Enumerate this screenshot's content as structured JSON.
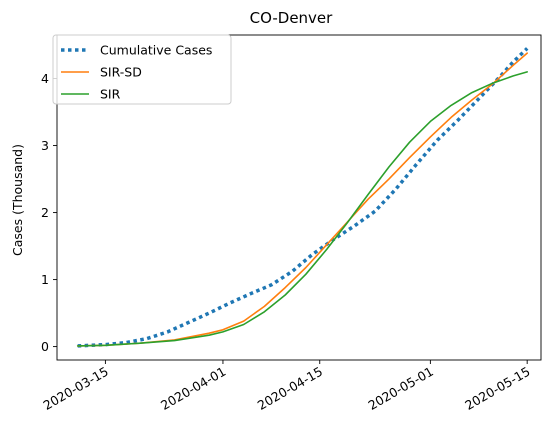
{
  "chart_data": {
    "type": "line",
    "title": "CO-Denver",
    "xlabel": "",
    "ylabel": "Cases (Thousand)",
    "x_ticks": [
      "2020-03-15",
      "2020-04-01",
      "2020-04-15",
      "2020-05-01",
      "2020-05-15"
    ],
    "y_ticks": [
      0,
      1,
      2,
      3,
      4
    ],
    "xlim": [
      "2020-03-08",
      "2020-05-17"
    ],
    "ylim": [
      -0.2,
      4.65
    ],
    "grid": false,
    "legend_position": "top-left",
    "series": [
      {
        "name": "Cumulative Cases",
        "style": "dotted",
        "color": "#1f77b4",
        "points": [
          [
            "2020-03-11",
            0.01
          ],
          [
            "2020-03-15",
            0.03
          ],
          [
            "2020-03-18",
            0.06
          ],
          [
            "2020-03-21",
            0.12
          ],
          [
            "2020-03-24",
            0.22
          ],
          [
            "2020-03-27",
            0.36
          ],
          [
            "2020-03-30",
            0.5
          ],
          [
            "2020-04-02",
            0.65
          ],
          [
            "2020-04-05",
            0.79
          ],
          [
            "2020-04-08",
            0.92
          ],
          [
            "2020-04-11",
            1.12
          ],
          [
            "2020-04-14",
            1.38
          ],
          [
            "2020-04-17",
            1.6
          ],
          [
            "2020-04-20",
            1.8
          ],
          [
            "2020-04-23",
            2.02
          ],
          [
            "2020-04-26",
            2.35
          ],
          [
            "2020-04-29",
            2.72
          ],
          [
            "2020-05-02",
            3.08
          ],
          [
            "2020-05-05",
            3.38
          ],
          [
            "2020-05-08",
            3.7
          ],
          [
            "2020-05-11",
            4.02
          ],
          [
            "2020-05-13",
            4.25
          ],
          [
            "2020-05-15",
            4.45
          ]
        ]
      },
      {
        "name": "SIR-SD",
        "style": "solid",
        "color": "#ff7f0e",
        "points": [
          [
            "2020-03-11",
            0.01
          ],
          [
            "2020-03-15",
            0.02
          ],
          [
            "2020-03-20",
            0.05
          ],
          [
            "2020-03-25",
            0.1
          ],
          [
            "2020-03-30",
            0.2
          ],
          [
            "2020-04-01",
            0.25
          ],
          [
            "2020-04-04",
            0.38
          ],
          [
            "2020-04-07",
            0.6
          ],
          [
            "2020-04-10",
            0.88
          ],
          [
            "2020-04-13",
            1.18
          ],
          [
            "2020-04-16",
            1.52
          ],
          [
            "2020-04-19",
            1.86
          ],
          [
            "2020-04-22",
            2.2
          ],
          [
            "2020-04-25",
            2.5
          ],
          [
            "2020-04-28",
            2.82
          ],
          [
            "2020-05-01",
            3.13
          ],
          [
            "2020-05-04",
            3.42
          ],
          [
            "2020-05-07",
            3.68
          ],
          [
            "2020-05-10",
            3.92
          ],
          [
            "2020-05-13",
            4.2
          ],
          [
            "2020-05-15",
            4.38
          ]
        ]
      },
      {
        "name": "SIR",
        "style": "solid",
        "color": "#2ca02c",
        "points": [
          [
            "2020-03-11",
            0.01
          ],
          [
            "2020-03-15",
            0.02
          ],
          [
            "2020-03-20",
            0.05
          ],
          [
            "2020-03-25",
            0.09
          ],
          [
            "2020-03-30",
            0.17
          ],
          [
            "2020-04-01",
            0.22
          ],
          [
            "2020-04-04",
            0.33
          ],
          [
            "2020-04-07",
            0.52
          ],
          [
            "2020-04-10",
            0.77
          ],
          [
            "2020-04-13",
            1.08
          ],
          [
            "2020-04-16",
            1.45
          ],
          [
            "2020-04-19",
            1.85
          ],
          [
            "2020-04-22",
            2.27
          ],
          [
            "2020-04-25",
            2.68
          ],
          [
            "2020-04-28",
            3.05
          ],
          [
            "2020-05-01",
            3.36
          ],
          [
            "2020-05-04",
            3.6
          ],
          [
            "2020-05-07",
            3.79
          ],
          [
            "2020-05-10",
            3.93
          ],
          [
            "2020-05-13",
            4.04
          ],
          [
            "2020-05-15",
            4.1
          ]
        ]
      }
    ]
  }
}
